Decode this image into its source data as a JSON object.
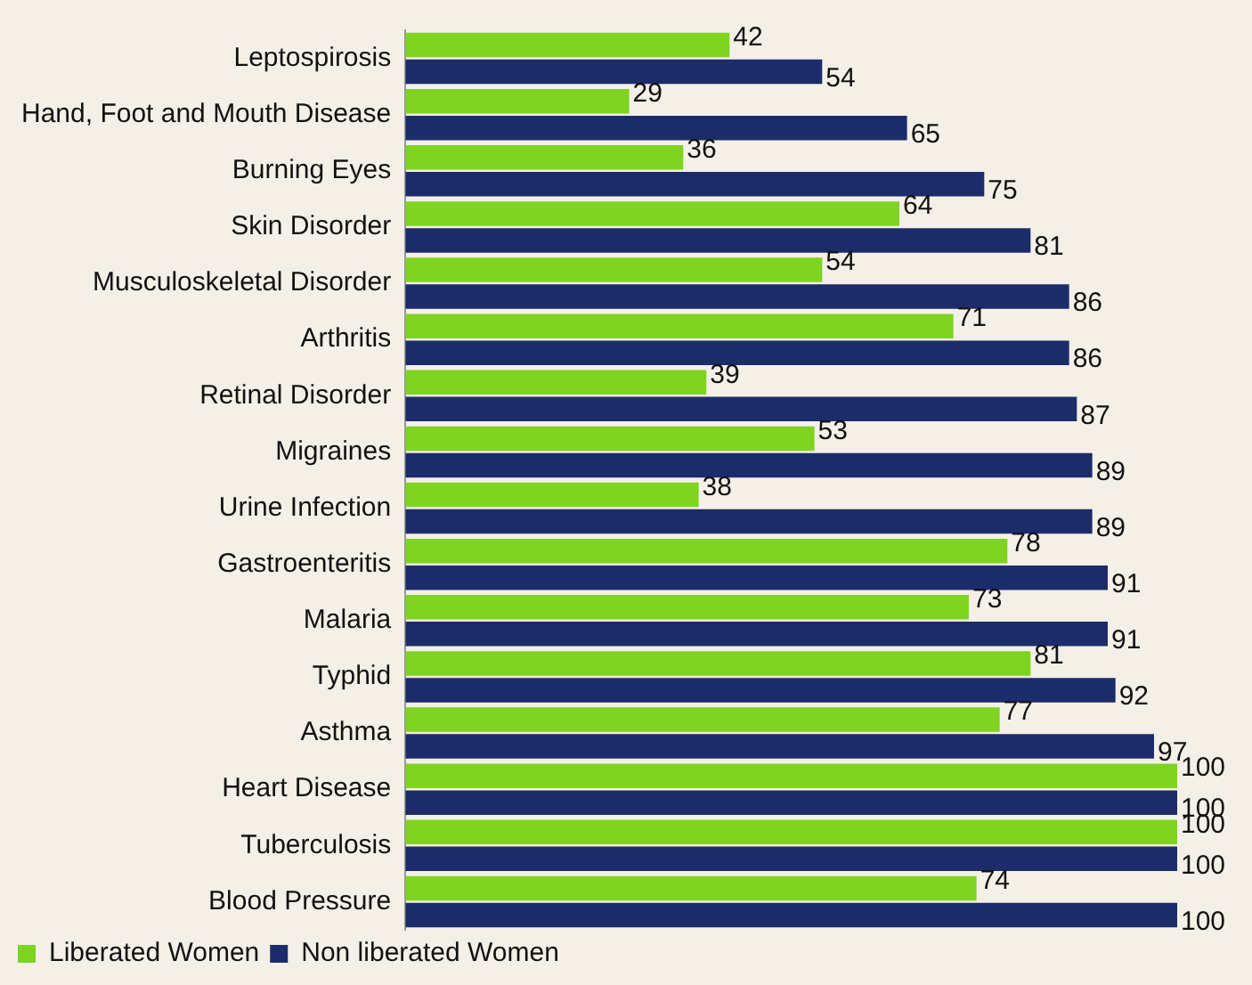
{
  "chart_data": {
    "type": "bar",
    "orientation": "horizontal",
    "data_labels": true,
    "legend": "bottom",
    "categories": [
      "Leptospirosis",
      "Hand, Foot and Mouth Disease",
      "Burning Eyes",
      "Skin Disorder",
      "Musculoskeletal Disorder",
      "Arthritis",
      "Retinal Disorder",
      "Migraines",
      "Urine Infection",
      "Gastroenteritis",
      "Malaria",
      "Typhid",
      "Asthma",
      "Heart Disease",
      "Tuberculosis",
      "Blood Pressure"
    ],
    "series": [
      {
        "name": "Liberated Women",
        "color": "#7fd321",
        "values": [
          42,
          29,
          36,
          64,
          54,
          71,
          39,
          53,
          38,
          78,
          73,
          81,
          77,
          100,
          100,
          74
        ]
      },
      {
        "name": "Non liberated Women",
        "color": "#1c2c6b",
        "values": [
          54,
          65,
          75,
          81,
          86,
          86,
          87,
          89,
          89,
          91,
          91,
          92,
          97,
          100,
          100,
          100
        ]
      }
    ]
  }
}
